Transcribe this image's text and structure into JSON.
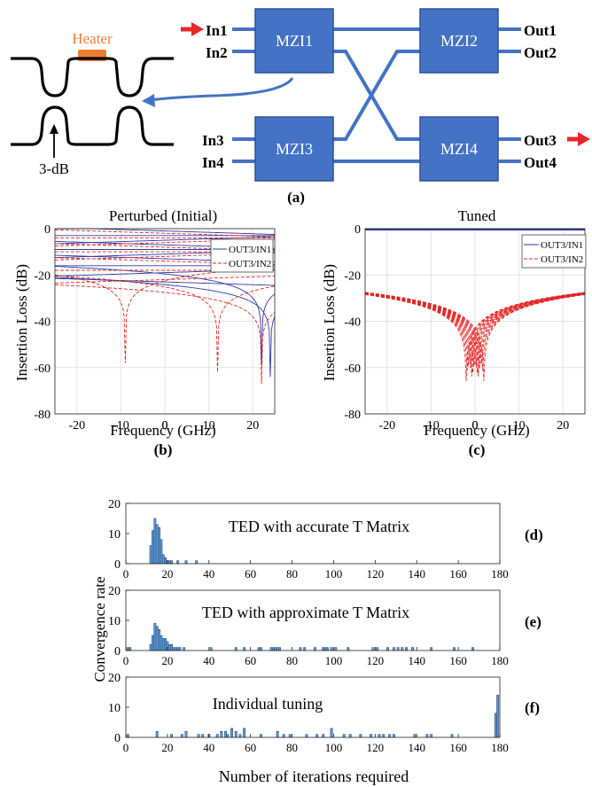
{
  "colors": {
    "mzi_fill": "#4472C4",
    "mzi_stroke": "#2F4F9A",
    "heater": "#ED7D31",
    "arrow_red": "#E8262A",
    "series_solid": "#2E3BA5",
    "series_dashed": "#E32626",
    "hist_fill": "#5B9BD5",
    "hist_stroke": "#1F3B64",
    "grid": "#E3E3E3"
  },
  "diagram": {
    "heater_label": "Heater",
    "coupler_label": "3-dB",
    "inputs": [
      "In1",
      "In2",
      "In3",
      "In4"
    ],
    "outputs": [
      "Out1",
      "Out2",
      "Out3",
      "Out4"
    ],
    "mzi_labels": [
      "MZI1",
      "MZI2",
      "MZI3",
      "MZI4"
    ],
    "caption": "(a)"
  },
  "chart_data": [
    {
      "id": "b",
      "type": "line",
      "title": "Perturbed (Initial)",
      "xlabel": "Frequency (GHz)",
      "ylabel": "Insertion Loss (dB)",
      "xlim": [
        -25,
        25
      ],
      "ylim": [
        -80,
        0
      ],
      "xticks": [
        -20,
        -10,
        0,
        10,
        20
      ],
      "yticks": [
        0,
        -20,
        -40,
        -60,
        -80
      ],
      "grid": true,
      "legend_position": "top-right",
      "caption": "(b)",
      "series": [
        {
          "name": "OUT3/IN1",
          "style": "solid",
          "description_levels_db": [
            -1,
            -3,
            -5,
            -7,
            -9,
            -11,
            -13,
            -16,
            -19,
            -23,
            -27,
            -32
          ],
          "notches_ghz": [
            -8,
            22,
            24
          ]
        },
        {
          "name": "OUT3/IN2",
          "style": "dashed",
          "description_levels_db": [
            -2,
            -4,
            -6,
            -8,
            -10,
            -12,
            -14,
            -18,
            -22,
            -26,
            -30,
            -35
          ],
          "notches_ghz": [
            -9,
            12,
            22
          ]
        }
      ]
    },
    {
      "id": "c",
      "type": "line",
      "title": "Tuned",
      "xlabel": "Frequency (GHz)",
      "ylabel": "Insertion Loss (dB)",
      "xlim": [
        -25,
        25
      ],
      "ylim": [
        -80,
        0
      ],
      "xticks": [
        -20,
        -10,
        0,
        10,
        20
      ],
      "yticks": [
        0,
        -20,
        -40,
        -60,
        -80
      ],
      "grid": true,
      "legend_position": "top-right",
      "caption": "(c)",
      "series": [
        {
          "name": "OUT3/IN1",
          "style": "solid",
          "level_db": 0
        },
        {
          "name": "OUT3/IN2",
          "style": "dashed",
          "edge_db": -28,
          "notch_center_ghz": 0,
          "notch_spread_ghz": [
            -2,
            2
          ]
        }
      ]
    },
    {
      "id": "d",
      "type": "bar",
      "label": "TED with accurate T Matrix",
      "caption": "(d)",
      "xlim": [
        0,
        180
      ],
      "ylim": [
        0,
        20
      ],
      "yticks": [
        0,
        10,
        20
      ],
      "bins_x": [
        12,
        13,
        14,
        15,
        16,
        17,
        18,
        19,
        20,
        21,
        22,
        25,
        29,
        34
      ],
      "counts": [
        6,
        11,
        15,
        13,
        12,
        8,
        3,
        2,
        1,
        1,
        1,
        1,
        1,
        1
      ]
    },
    {
      "id": "e",
      "type": "bar",
      "label": "TED with approximate T Matrix",
      "caption": "(e)",
      "xlim": [
        0,
        180
      ],
      "ylim": [
        0,
        20
      ],
      "yticks": [
        0,
        10,
        20
      ],
      "bins_x": [
        1,
        2,
        12,
        13,
        14,
        15,
        16,
        17,
        18,
        19,
        20,
        21,
        22,
        23,
        24,
        25,
        26,
        28,
        41,
        53,
        57,
        64,
        65,
        70,
        71,
        72,
        73,
        74,
        84,
        86,
        91,
        95,
        96,
        97,
        99,
        101,
        107,
        119,
        121,
        126,
        129,
        131,
        133,
        135,
        138,
        147,
        158,
        167
      ],
      "counts": [
        1,
        1,
        2,
        5,
        9,
        8,
        7,
        5,
        4,
        4,
        3,
        2,
        2,
        1,
        1,
        1,
        1,
        1,
        1,
        1,
        1,
        1,
        1,
        1,
        1,
        1,
        1,
        1,
        1,
        1,
        1,
        1,
        1,
        1,
        1,
        1,
        1,
        1,
        1,
        1,
        1,
        1,
        1,
        1,
        1,
        1,
        1,
        1
      ]
    },
    {
      "id": "f",
      "type": "bar",
      "label": "Individual tuning",
      "caption": "(f)",
      "xlim": [
        0,
        180
      ],
      "ylim": [
        0,
        20
      ],
      "yticks": [
        0,
        10,
        20
      ],
      "xticks": [
        0,
        20,
        40,
        60,
        80,
        100,
        120,
        140,
        160,
        180
      ],
      "bins_x": [
        1,
        15,
        22,
        27,
        29,
        35,
        37,
        40,
        44,
        46,
        48,
        49,
        51,
        53,
        55,
        57,
        65,
        73,
        76,
        79,
        87,
        92,
        95,
        99,
        105,
        108,
        113,
        118,
        122,
        124,
        127,
        129,
        139,
        145,
        147,
        157,
        178,
        179
      ],
      "counts": [
        1,
        2,
        1,
        1,
        2,
        1,
        1,
        1,
        1,
        2,
        2,
        1,
        3,
        2,
        1,
        3,
        1,
        2,
        1,
        1,
        1,
        1,
        1,
        3,
        1,
        1,
        1,
        1,
        1,
        1,
        1,
        1,
        1,
        1,
        1,
        1,
        8,
        14
      ]
    }
  ],
  "histogram_axes": {
    "ylabel": "Convergence rate",
    "xlabel": "Number of iterations required"
  }
}
